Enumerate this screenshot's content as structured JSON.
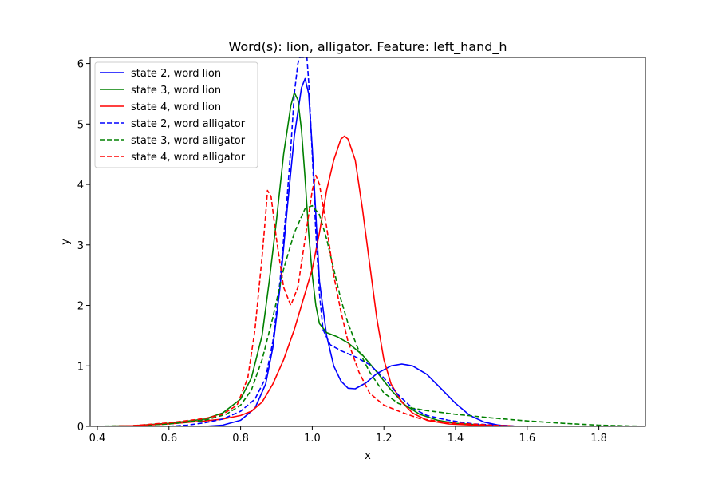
{
  "chart_data": {
    "type": "line",
    "title": "Word(s): lion, alligator. Feature: left_hand_h",
    "xlabel": "x",
    "ylabel": "y",
    "xlim": [
      0.38,
      1.93
    ],
    "ylim": [
      0,
      6.1
    ],
    "xticks": [
      "0.4",
      "0.6",
      "0.8",
      "1.0",
      "1.2",
      "1.4",
      "1.6",
      "1.8"
    ],
    "yticks": [
      "0",
      "1",
      "2",
      "3",
      "4",
      "5",
      "6"
    ],
    "legend_position": "top-left",
    "grid": false,
    "series": [
      {
        "name": "state 2, word lion",
        "color": "#0000ff",
        "dash": "solid",
        "points": [
          [
            0.7,
            0
          ],
          [
            0.75,
            0.02
          ],
          [
            0.8,
            0.1
          ],
          [
            0.84,
            0.3
          ],
          [
            0.87,
            0.7
          ],
          [
            0.89,
            1.3
          ],
          [
            0.91,
            2.3
          ],
          [
            0.93,
            3.6
          ],
          [
            0.95,
            4.8
          ],
          [
            0.97,
            5.6
          ],
          [
            0.98,
            5.75
          ],
          [
            0.99,
            5.5
          ],
          [
            1.0,
            4.6
          ],
          [
            1.01,
            3.5
          ],
          [
            1.02,
            2.4
          ],
          [
            1.04,
            1.5
          ],
          [
            1.06,
            1.0
          ],
          [
            1.08,
            0.75
          ],
          [
            1.1,
            0.63
          ],
          [
            1.12,
            0.62
          ],
          [
            1.15,
            0.72
          ],
          [
            1.18,
            0.87
          ],
          [
            1.22,
            1.0
          ],
          [
            1.25,
            1.03
          ],
          [
            1.28,
            1.0
          ],
          [
            1.32,
            0.86
          ],
          [
            1.36,
            0.62
          ],
          [
            1.4,
            0.38
          ],
          [
            1.44,
            0.18
          ],
          [
            1.48,
            0.07
          ],
          [
            1.52,
            0.02
          ],
          [
            1.57,
            0
          ]
        ]
      },
      {
        "name": "state 3, word lion",
        "color": "#008000",
        "dash": "solid",
        "points": [
          [
            0.4,
            0
          ],
          [
            0.5,
            0.01
          ],
          [
            0.6,
            0.05
          ],
          [
            0.7,
            0.12
          ],
          [
            0.75,
            0.22
          ],
          [
            0.8,
            0.45
          ],
          [
            0.83,
            0.8
          ],
          [
            0.86,
            1.5
          ],
          [
            0.88,
            2.4
          ],
          [
            0.9,
            3.4
          ],
          [
            0.92,
            4.5
          ],
          [
            0.94,
            5.3
          ],
          [
            0.95,
            5.52
          ],
          [
            0.96,
            5.4
          ],
          [
            0.97,
            4.9
          ],
          [
            0.98,
            4.1
          ],
          [
            0.99,
            3.2
          ],
          [
            1.0,
            2.5
          ],
          [
            1.01,
            2.0
          ],
          [
            1.02,
            1.7
          ],
          [
            1.04,
            1.55
          ],
          [
            1.07,
            1.48
          ],
          [
            1.1,
            1.38
          ],
          [
            1.14,
            1.18
          ],
          [
            1.18,
            0.9
          ],
          [
            1.22,
            0.6
          ],
          [
            1.26,
            0.35
          ],
          [
            1.3,
            0.2
          ],
          [
            1.35,
            0.1
          ],
          [
            1.4,
            0.05
          ],
          [
            1.5,
            0.01
          ],
          [
            1.57,
            0
          ]
        ]
      },
      {
        "name": "state 4, word lion",
        "color": "#ff0000",
        "dash": "solid",
        "points": [
          [
            0.43,
            0
          ],
          [
            0.5,
            0.01
          ],
          [
            0.6,
            0.04
          ],
          [
            0.7,
            0.09
          ],
          [
            0.75,
            0.12
          ],
          [
            0.8,
            0.18
          ],
          [
            0.83,
            0.25
          ],
          [
            0.86,
            0.4
          ],
          [
            0.89,
            0.7
          ],
          [
            0.92,
            1.1
          ],
          [
            0.95,
            1.6
          ],
          [
            0.98,
            2.2
          ],
          [
            1.0,
            2.6
          ],
          [
            1.02,
            3.2
          ],
          [
            1.04,
            3.9
          ],
          [
            1.06,
            4.4
          ],
          [
            1.08,
            4.75
          ],
          [
            1.09,
            4.8
          ],
          [
            1.1,
            4.75
          ],
          [
            1.12,
            4.4
          ],
          [
            1.14,
            3.6
          ],
          [
            1.16,
            2.7
          ],
          [
            1.18,
            1.8
          ],
          [
            1.2,
            1.1
          ],
          [
            1.22,
            0.7
          ],
          [
            1.25,
            0.4
          ],
          [
            1.28,
            0.22
          ],
          [
            1.32,
            0.1
          ],
          [
            1.38,
            0.04
          ],
          [
            1.45,
            0.02
          ],
          [
            1.55,
            0.01
          ],
          [
            1.57,
            0
          ]
        ]
      },
      {
        "name": "state 2, word alligator",
        "color": "#0000ff",
        "dash": "dashed",
        "points": [
          [
            0.6,
            0
          ],
          [
            0.65,
            0.02
          ],
          [
            0.7,
            0.06
          ],
          [
            0.75,
            0.12
          ],
          [
            0.8,
            0.25
          ],
          [
            0.84,
            0.45
          ],
          [
            0.87,
            0.8
          ],
          [
            0.89,
            1.4
          ],
          [
            0.91,
            2.4
          ],
          [
            0.93,
            3.8
          ],
          [
            0.94,
            4.6
          ],
          [
            0.95,
            5.5
          ],
          [
            0.96,
            6.0
          ],
          [
            0.965,
            6.1
          ],
          [
            0.985,
            6.1
          ],
          [
            0.99,
            5.7
          ],
          [
            1.0,
            4.5
          ],
          [
            1.01,
            3.2
          ],
          [
            1.02,
            2.2
          ],
          [
            1.03,
            1.6
          ],
          [
            1.05,
            1.35
          ],
          [
            1.08,
            1.25
          ],
          [
            1.12,
            1.15
          ],
          [
            1.16,
            1.02
          ],
          [
            1.2,
            0.8
          ],
          [
            1.24,
            0.52
          ],
          [
            1.28,
            0.3
          ],
          [
            1.32,
            0.18
          ],
          [
            1.38,
            0.1
          ],
          [
            1.45,
            0.04
          ],
          [
            1.55,
            0.01
          ],
          [
            1.57,
            0
          ]
        ]
      },
      {
        "name": "state 3, word alligator",
        "color": "#008000",
        "dash": "dashed",
        "points": [
          [
            0.38,
            0
          ],
          [
            0.5,
            0.01
          ],
          [
            0.6,
            0.04
          ],
          [
            0.7,
            0.1
          ],
          [
            0.76,
            0.2
          ],
          [
            0.8,
            0.35
          ],
          [
            0.83,
            0.6
          ],
          [
            0.86,
            1.1
          ],
          [
            0.89,
            1.8
          ],
          [
            0.92,
            2.6
          ],
          [
            0.95,
            3.2
          ],
          [
            0.98,
            3.6
          ],
          [
            1.0,
            3.65
          ],
          [
            1.02,
            3.5
          ],
          [
            1.04,
            3.1
          ],
          [
            1.06,
            2.6
          ],
          [
            1.08,
            2.1
          ],
          [
            1.1,
            1.7
          ],
          [
            1.13,
            1.25
          ],
          [
            1.16,
            0.9
          ],
          [
            1.2,
            0.55
          ],
          [
            1.24,
            0.38
          ],
          [
            1.28,
            0.3
          ],
          [
            1.32,
            0.26
          ],
          [
            1.4,
            0.2
          ],
          [
            1.5,
            0.14
          ],
          [
            1.6,
            0.09
          ],
          [
            1.7,
            0.05
          ],
          [
            1.8,
            0.02
          ],
          [
            1.93,
            0
          ]
        ]
      },
      {
        "name": "state 4, word alligator",
        "color": "#ff0000",
        "dash": "dashed",
        "points": [
          [
            0.42,
            0
          ],
          [
            0.5,
            0.01
          ],
          [
            0.6,
            0.06
          ],
          [
            0.7,
            0.13
          ],
          [
            0.75,
            0.2
          ],
          [
            0.79,
            0.35
          ],
          [
            0.82,
            0.8
          ],
          [
            0.84,
            1.6
          ],
          [
            0.86,
            2.8
          ],
          [
            0.87,
            3.5
          ],
          [
            0.875,
            3.9
          ],
          [
            0.885,
            3.8
          ],
          [
            0.9,
            3.1
          ],
          [
            0.92,
            2.3
          ],
          [
            0.94,
            2.0
          ],
          [
            0.96,
            2.3
          ],
          [
            0.98,
            3.1
          ],
          [
            1.0,
            3.9
          ],
          [
            1.01,
            4.15
          ],
          [
            1.02,
            4.0
          ],
          [
            1.04,
            3.3
          ],
          [
            1.06,
            2.5
          ],
          [
            1.08,
            1.9
          ],
          [
            1.1,
            1.4
          ],
          [
            1.13,
            0.9
          ],
          [
            1.16,
            0.55
          ],
          [
            1.2,
            0.35
          ],
          [
            1.25,
            0.23
          ],
          [
            1.3,
            0.13
          ],
          [
            1.38,
            0.06
          ],
          [
            1.5,
            0.02
          ],
          [
            1.57,
            0
          ]
        ]
      }
    ]
  }
}
